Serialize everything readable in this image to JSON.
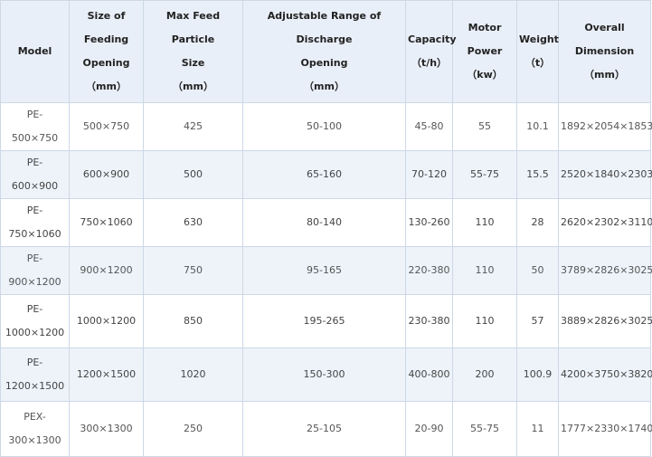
{
  "headers": {
    "model": [
      "Model"
    ],
    "feed_opening": [
      "Size of",
      "Feeding",
      "Opening",
      "（mm）"
    ],
    "max_feed": [
      "Max Feed Particle",
      "Size",
      "（mm）"
    ],
    "discharge": [
      "Adjustable Range of Discharge",
      "Opening",
      "（mm）"
    ],
    "capacity": [
      "Capacity",
      "（t/h）"
    ],
    "motor": [
      "Motor",
      "Power",
      "（kw）"
    ],
    "weight": [
      "Weight",
      "（t）"
    ],
    "dimension": [
      "Overall",
      "Dimension",
      "（mm）"
    ]
  },
  "rows": [
    {
      "model": [
        "PE- 500×750"
      ],
      "feed_opening": "500×750",
      "max_feed": "425",
      "discharge": "50-100",
      "capacity": "45-80",
      "motor": "55",
      "weight": "10.1",
      "dimension": "1892×2054×1853"
    },
    {
      "model": [
        "PE- 600×900"
      ],
      "feed_opening": "600×900",
      "max_feed": "500",
      "discharge": "65-160",
      "capacity": "70-120",
      "motor": "55-75",
      "weight": "15.5",
      "dimension": "2520×1840×2303"
    },
    {
      "model": [
        "PE- 750×1060"
      ],
      "feed_opening": "750×1060",
      "max_feed": "630",
      "discharge": "80-140",
      "capacity": "130-260",
      "motor": "110",
      "weight": "28",
      "dimension": "2620×2302×3110"
    },
    {
      "model": [
        "PE- 900×1200"
      ],
      "feed_opening": "900×1200",
      "max_feed": "750",
      "discharge": "95-165",
      "capacity": "220-380",
      "motor": "110",
      "weight": "50",
      "dimension": "3789×2826×3025"
    },
    {
      "model": [
        "PE-",
        "1000×1200"
      ],
      "feed_opening": "1000×1200",
      "max_feed": "850",
      "discharge": "195-265",
      "capacity": "230-380",
      "motor": "110",
      "weight": "57",
      "dimension": "3889×2826×3025"
    },
    {
      "model": [
        "PE-",
        "1200×1500"
      ],
      "feed_opening": "1200×1500",
      "max_feed": "1020",
      "discharge": "150-300",
      "capacity": "400-800",
      "motor": "200",
      "weight": "100.9",
      "dimension": "4200×3750×3820"
    },
    {
      "model": [
        "PEX-",
        "300×1300"
      ],
      "feed_opening": "300×1300",
      "max_feed": "250",
      "discharge": "25-105",
      "capacity": "20-90",
      "motor": "55-75",
      "weight": "11",
      "dimension": "1777×2330×1740"
    }
  ]
}
